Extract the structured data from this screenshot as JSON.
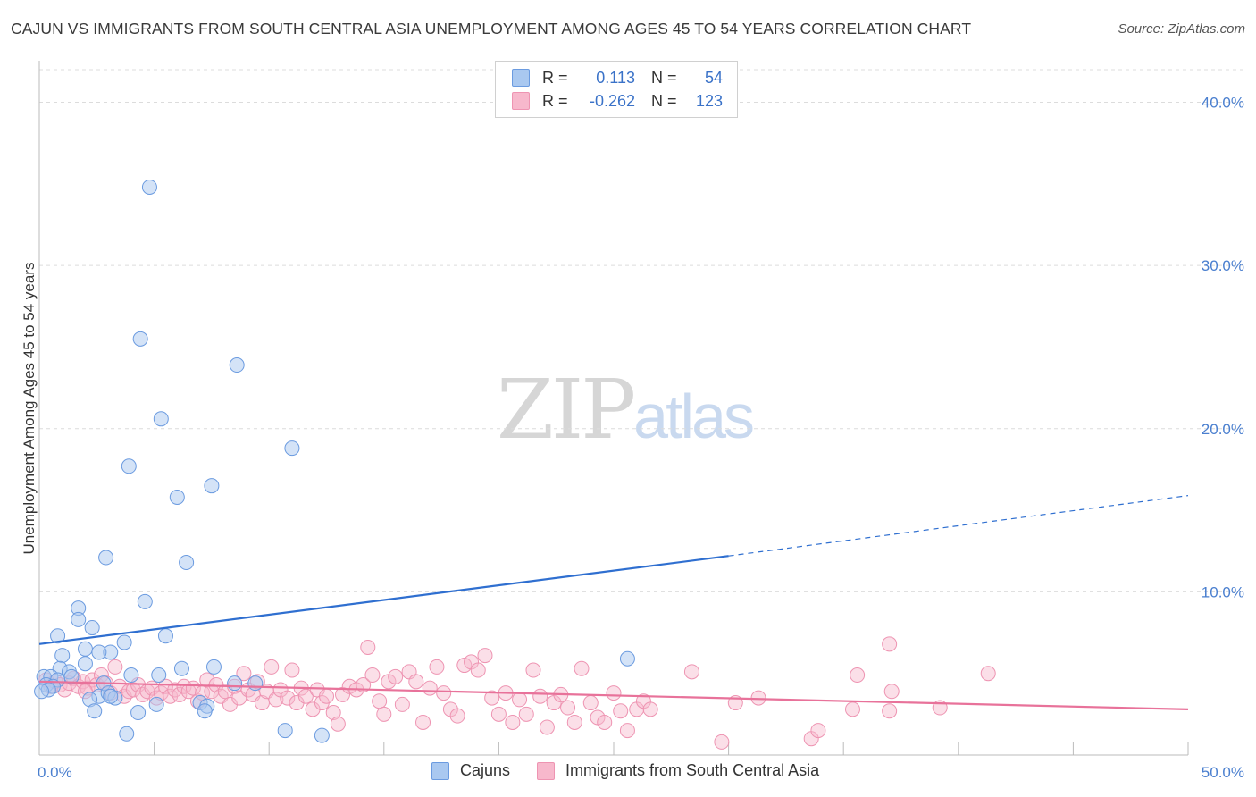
{
  "title": "CAJUN VS IMMIGRANTS FROM SOUTH CENTRAL ASIA UNEMPLOYMENT AMONG AGES 45 TO 54 YEARS CORRELATION CHART",
  "source": "Source: ZipAtlas.com",
  "watermark": {
    "zip": "ZIP",
    "atlas": "atlas"
  },
  "legend": {
    "rows": [
      {
        "r_label": "R =",
        "r_value": "0.113",
        "n_label": "N =",
        "n_value": "54"
      },
      {
        "r_label": "R =",
        "r_value": "-0.262",
        "n_label": "N =",
        "n_value": "123"
      }
    ]
  },
  "bottom_legend": {
    "cajuns": "Cajuns",
    "immigrants": "Immigrants from South Central Asia"
  },
  "colors": {
    "cajun_fill": "#a9c8f0",
    "cajun_stroke": "#6b9be0",
    "cajun_line": "#2f6fd0",
    "imm_fill": "#f7b8cc",
    "imm_stroke": "#ee94b2",
    "imm_line": "#e8729a",
    "grid": "#dcdcdc",
    "tick_text": "#4a7fcf"
  },
  "chart_data": {
    "type": "scatter",
    "title": "CAJUN VS IMMIGRANTS FROM SOUTH CENTRAL ASIA UNEMPLOYMENT AMONG AGES 45 TO 54 YEARS CORRELATION CHART",
    "xlabel": "",
    "ylabel": "Unemployment Among Ages 45 to 54 years",
    "xlim": [
      0,
      50
    ],
    "ylim": [
      0,
      42
    ],
    "x_ticks": [
      0,
      50
    ],
    "x_tick_labels": [
      "0.0%",
      "50.0%"
    ],
    "y_ticks": [
      10,
      20,
      30,
      40
    ],
    "y_tick_labels": [
      "10.0%",
      "20.0%",
      "30.0%",
      "40.0%"
    ],
    "grid": true,
    "legend_position": "top-center",
    "series": [
      {
        "name": "Cajuns",
        "r": 0.113,
        "n": 54,
        "trend": {
          "x": [
            0,
            30
          ],
          "y": [
            6.8,
            12.2
          ],
          "dashed_to": [
            50,
            15.9
          ]
        },
        "points": [
          [
            4.8,
            34.8
          ],
          [
            4.4,
            25.5
          ],
          [
            8.6,
            23.9
          ],
          [
            5.3,
            20.6
          ],
          [
            11.0,
            18.8
          ],
          [
            3.9,
            17.7
          ],
          [
            7.5,
            16.5
          ],
          [
            6.0,
            15.8
          ],
          [
            2.9,
            12.1
          ],
          [
            6.4,
            11.8
          ],
          [
            4.6,
            9.4
          ],
          [
            1.7,
            9.0
          ],
          [
            1.7,
            8.3
          ],
          [
            2.3,
            7.8
          ],
          [
            0.8,
            7.3
          ],
          [
            5.5,
            7.3
          ],
          [
            3.7,
            6.9
          ],
          [
            2.0,
            6.5
          ],
          [
            3.1,
            6.3
          ],
          [
            2.6,
            6.3
          ],
          [
            1.0,
            6.1
          ],
          [
            25.6,
            5.9
          ],
          [
            2.0,
            5.6
          ],
          [
            7.6,
            5.4
          ],
          [
            6.2,
            5.3
          ],
          [
            0.9,
            5.3
          ],
          [
            1.3,
            5.1
          ],
          [
            0.2,
            4.8
          ],
          [
            0.5,
            4.8
          ],
          [
            4.0,
            4.9
          ],
          [
            5.2,
            4.9
          ],
          [
            1.4,
            4.8
          ],
          [
            0.8,
            4.6
          ],
          [
            2.8,
            4.4
          ],
          [
            0.3,
            4.3
          ],
          [
            0.6,
            4.2
          ],
          [
            0.4,
            4.0
          ],
          [
            9.4,
            4.4
          ],
          [
            8.5,
            4.4
          ],
          [
            0.1,
            3.9
          ],
          [
            2.6,
            3.6
          ],
          [
            3.0,
            3.8
          ],
          [
            3.3,
            3.5
          ],
          [
            2.2,
            3.4
          ],
          [
            7.0,
            3.2
          ],
          [
            7.3,
            3.0
          ],
          [
            5.1,
            3.1
          ],
          [
            3.1,
            3.6
          ],
          [
            2.4,
            2.7
          ],
          [
            7.2,
            2.7
          ],
          [
            4.3,
            2.6
          ],
          [
            3.8,
            1.3
          ],
          [
            10.7,
            1.5
          ],
          [
            12.3,
            1.2
          ]
        ]
      },
      {
        "name": "Immigrants from South Central Asia",
        "r": -0.262,
        "n": 123,
        "trend": {
          "x": [
            0,
            50
          ],
          "y": [
            4.5,
            2.8
          ]
        },
        "points": [
          [
            0.3,
            4.6
          ],
          [
            0.5,
            4.2
          ],
          [
            0.7,
            4.5
          ],
          [
            0.9,
            4.3
          ],
          [
            1.1,
            4.0
          ],
          [
            1.3,
            4.4
          ],
          [
            1.5,
            4.7
          ],
          [
            1.7,
            4.2
          ],
          [
            1.9,
            4.5
          ],
          [
            2.1,
            4.1
          ],
          [
            2.3,
            4.6
          ],
          [
            2.5,
            4.3
          ],
          [
            2.7,
            4.9
          ],
          [
            2.9,
            4.4
          ],
          [
            3.1,
            3.8
          ],
          [
            3.3,
            5.4
          ],
          [
            3.5,
            4.2
          ],
          [
            3.7,
            3.6
          ],
          [
            3.9,
            3.9
          ],
          [
            4.1,
            4.0
          ],
          [
            4.3,
            4.3
          ],
          [
            4.5,
            3.7
          ],
          [
            4.7,
            3.9
          ],
          [
            4.9,
            4.1
          ],
          [
            5.1,
            3.5
          ],
          [
            5.3,
            3.8
          ],
          [
            5.5,
            4.2
          ],
          [
            5.7,
            3.6
          ],
          [
            5.9,
            4.0
          ],
          [
            6.1,
            3.7
          ],
          [
            6.3,
            4.2
          ],
          [
            6.5,
            3.9
          ],
          [
            6.7,
            4.1
          ],
          [
            6.9,
            3.3
          ],
          [
            7.1,
            3.8
          ],
          [
            7.3,
            4.6
          ],
          [
            7.5,
            3.9
          ],
          [
            7.7,
            4.3
          ],
          [
            7.9,
            3.6
          ],
          [
            8.1,
            3.9
          ],
          [
            8.3,
            3.1
          ],
          [
            8.5,
            4.2
          ],
          [
            8.7,
            3.5
          ],
          [
            8.9,
            5.0
          ],
          [
            9.1,
            4.0
          ],
          [
            9.3,
            3.7
          ],
          [
            9.5,
            4.5
          ],
          [
            9.7,
            3.2
          ],
          [
            9.9,
            3.9
          ],
          [
            10.1,
            5.4
          ],
          [
            10.3,
            3.4
          ],
          [
            10.5,
            4.0
          ],
          [
            10.8,
            3.5
          ],
          [
            11.0,
            5.2
          ],
          [
            11.2,
            3.2
          ],
          [
            11.4,
            4.1
          ],
          [
            11.6,
            3.6
          ],
          [
            11.9,
            2.8
          ],
          [
            12.1,
            4.0
          ],
          [
            12.3,
            3.2
          ],
          [
            12.5,
            3.6
          ],
          [
            12.8,
            2.6
          ],
          [
            13.0,
            1.9
          ],
          [
            13.2,
            3.7
          ],
          [
            13.5,
            4.2
          ],
          [
            13.8,
            4.0
          ],
          [
            14.1,
            4.3
          ],
          [
            14.3,
            6.6
          ],
          [
            14.5,
            4.9
          ],
          [
            14.8,
            3.3
          ],
          [
            15.0,
            2.5
          ],
          [
            15.2,
            4.5
          ],
          [
            15.5,
            4.8
          ],
          [
            15.8,
            3.1
          ],
          [
            16.1,
            5.1
          ],
          [
            16.4,
            4.5
          ],
          [
            16.7,
            2.0
          ],
          [
            17.0,
            4.1
          ],
          [
            17.3,
            5.4
          ],
          [
            17.6,
            3.8
          ],
          [
            17.9,
            2.8
          ],
          [
            18.2,
            2.4
          ],
          [
            18.5,
            5.5
          ],
          [
            18.8,
            5.7
          ],
          [
            19.1,
            5.2
          ],
          [
            19.4,
            6.1
          ],
          [
            19.7,
            3.5
          ],
          [
            20.0,
            2.5
          ],
          [
            20.3,
            3.8
          ],
          [
            20.6,
            2.0
          ],
          [
            20.9,
            3.4
          ],
          [
            21.2,
            2.5
          ],
          [
            21.5,
            5.2
          ],
          [
            21.8,
            3.6
          ],
          [
            22.1,
            1.7
          ],
          [
            22.4,
            3.2
          ],
          [
            22.7,
            3.7
          ],
          [
            23.0,
            2.9
          ],
          [
            23.3,
            2.0
          ],
          [
            23.6,
            5.3
          ],
          [
            24.0,
            3.2
          ],
          [
            24.3,
            2.3
          ],
          [
            24.6,
            2.0
          ],
          [
            25.0,
            3.8
          ],
          [
            25.3,
            2.7
          ],
          [
            25.6,
            1.5
          ],
          [
            26.0,
            2.8
          ],
          [
            26.3,
            3.3
          ],
          [
            26.6,
            2.8
          ],
          [
            28.4,
            5.1
          ],
          [
            30.3,
            3.2
          ],
          [
            29.7,
            0.8
          ],
          [
            31.3,
            3.5
          ],
          [
            33.6,
            1.0
          ],
          [
            33.9,
            1.5
          ],
          [
            35.4,
            2.8
          ],
          [
            35.6,
            4.9
          ],
          [
            37.0,
            2.7
          ],
          [
            37.1,
            3.9
          ],
          [
            37.0,
            6.8
          ],
          [
            39.2,
            2.9
          ],
          [
            41.3,
            5.0
          ],
          [
            2.0,
            3.9
          ]
        ]
      }
    ]
  }
}
